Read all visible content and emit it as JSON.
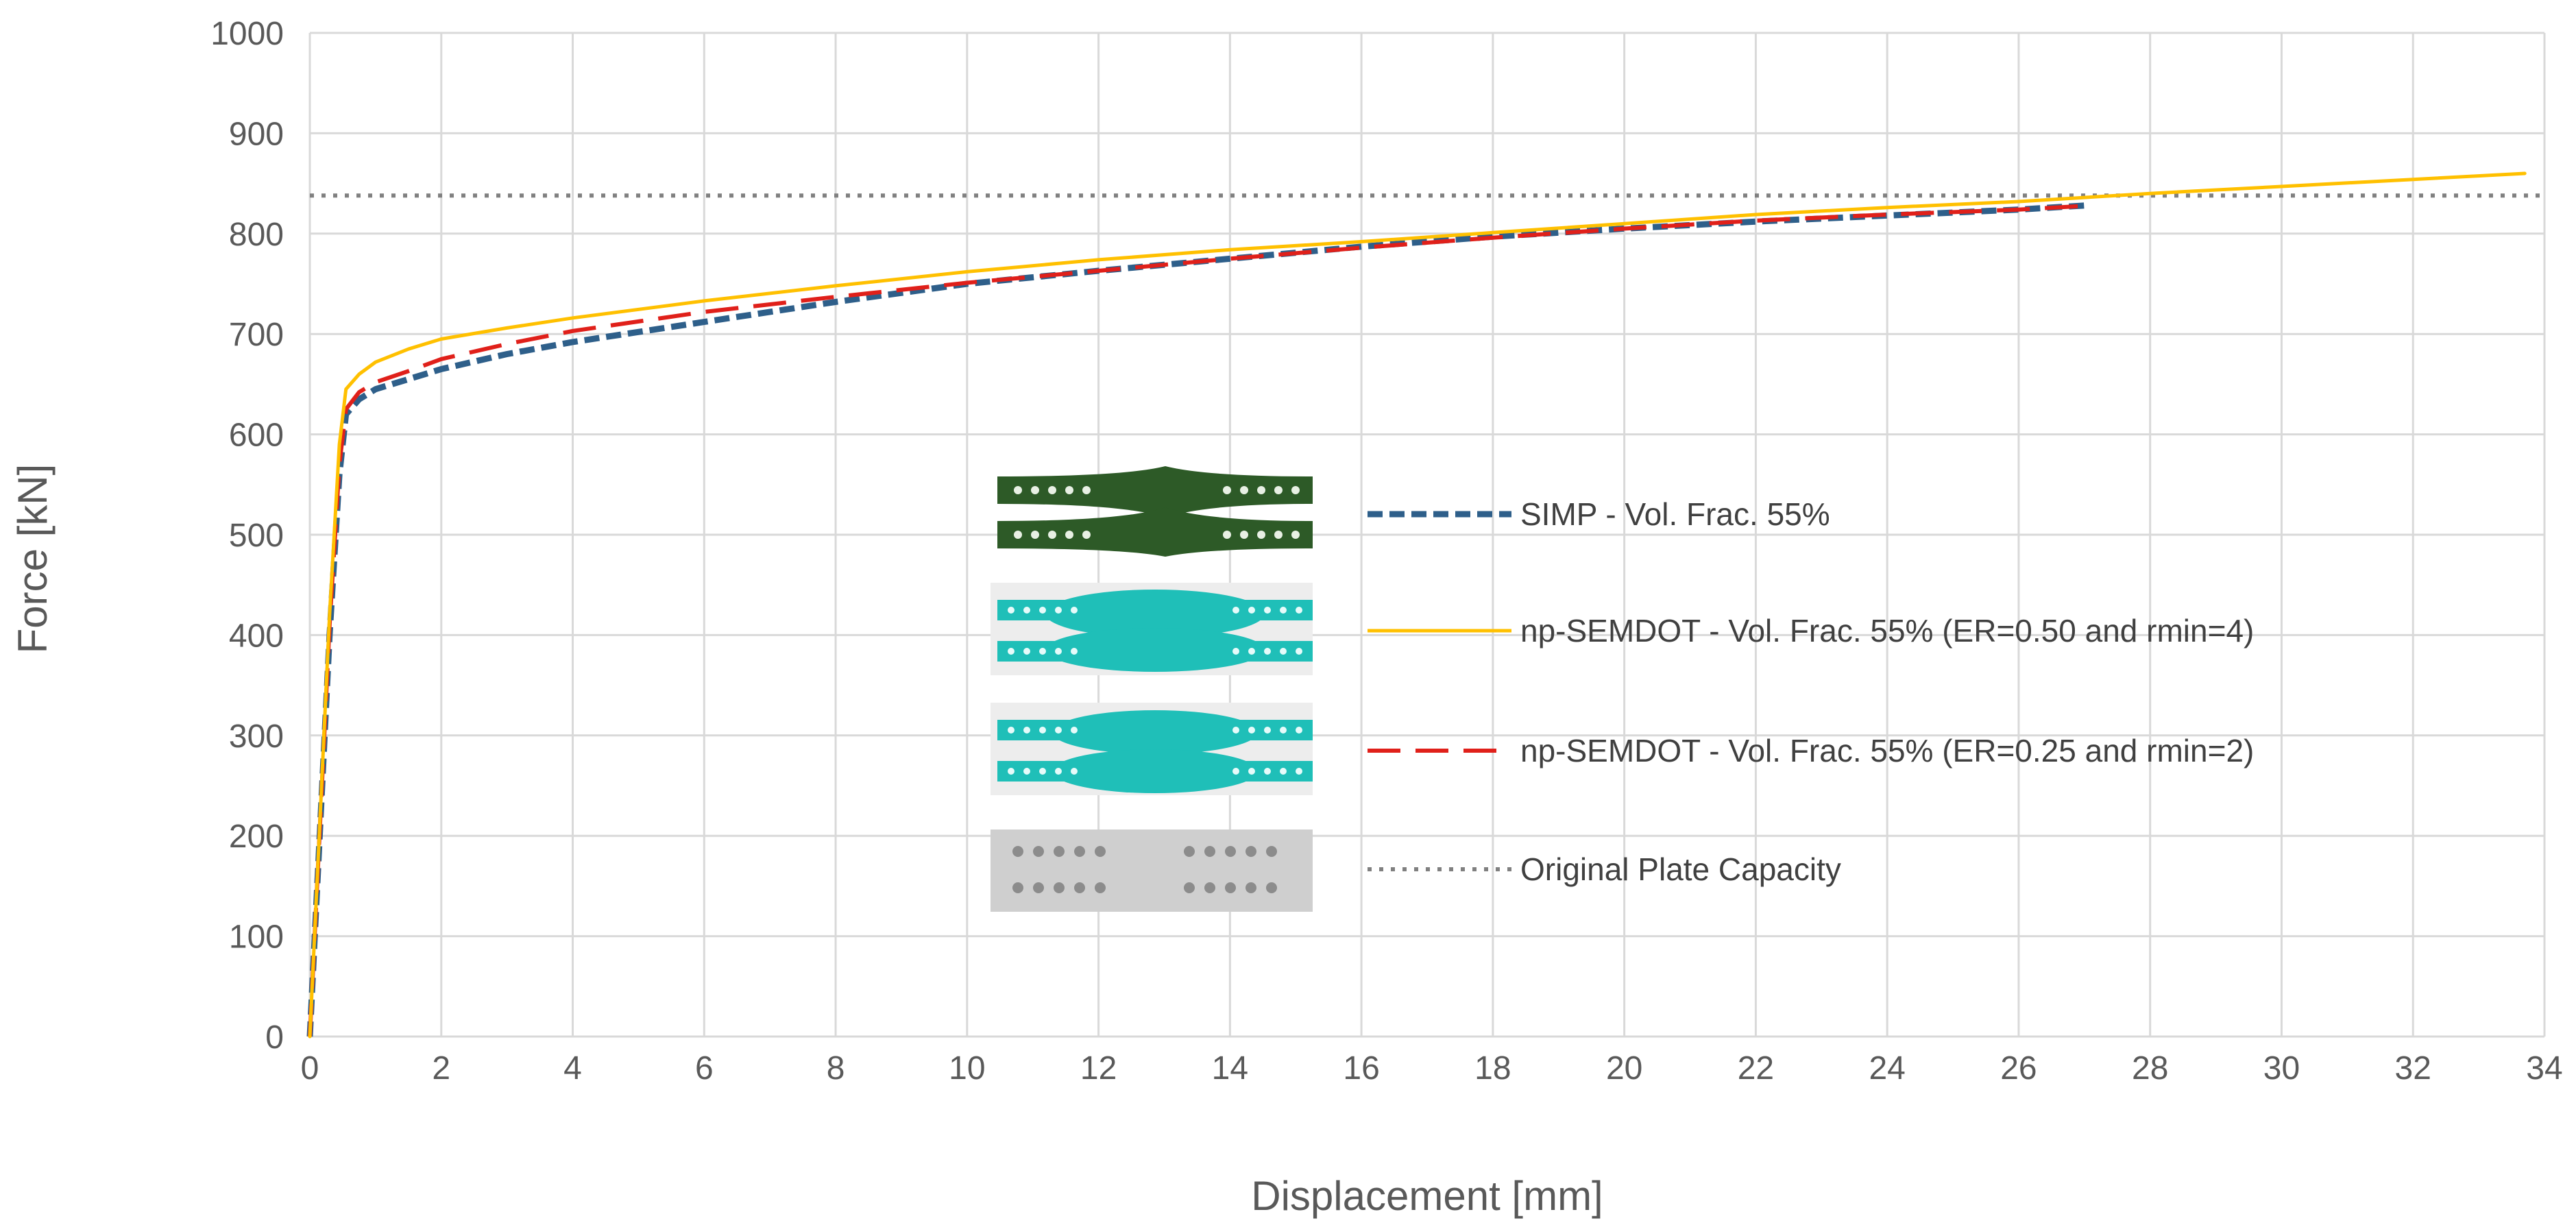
{
  "chart_data": {
    "type": "line",
    "title": "",
    "xlabel": "Displacement [mm]",
    "ylabel": "Force [kN]",
    "xlim": [
      0,
      34
    ],
    "ylim": [
      0,
      1000
    ],
    "xticks": [
      0,
      2,
      4,
      6,
      8,
      10,
      12,
      14,
      16,
      18,
      20,
      22,
      24,
      26,
      28,
      30,
      32,
      34
    ],
    "yticks": [
      0,
      100,
      200,
      300,
      400,
      500,
      600,
      700,
      800,
      900,
      1000
    ],
    "grid": true,
    "legend_position": "center",
    "series": [
      {
        "name": "SIMP - Vol. Frac. 55%",
        "color": "#2e5f8a",
        "style": "dashed",
        "x": [
          0,
          0.15,
          0.3,
          0.45,
          0.55,
          0.75,
          1,
          1.5,
          2,
          3,
          4,
          6,
          8,
          10,
          12,
          14,
          16,
          18,
          20,
          22,
          24,
          26,
          27
        ],
        "y": [
          0,
          200,
          400,
          560,
          620,
          635,
          645,
          655,
          665,
          680,
          692,
          712,
          732,
          750,
          763,
          775,
          787,
          797,
          805,
          812,
          818,
          824,
          828
        ]
      },
      {
        "name": "np-SEMDOT - Vol. Frac. 55% (ER=0.50 and rmin=4)",
        "color": "#ffc000",
        "style": "solid",
        "x": [
          0,
          0.15,
          0.3,
          0.45,
          0.55,
          0.75,
          1,
          1.5,
          2,
          3,
          4,
          6,
          8,
          10,
          12,
          14,
          16,
          18,
          20,
          22,
          24,
          26,
          28,
          30,
          32,
          33.7
        ],
        "y": [
          0,
          210,
          420,
          590,
          645,
          660,
          672,
          685,
          695,
          706,
          716,
          733,
          748,
          762,
          774,
          784,
          792,
          801,
          810,
          819,
          826,
          832,
          840,
          847,
          854,
          860
        ]
      },
      {
        "name": "np-SEMDOT - Vol. Frac. 55% (ER=0.25 and rmin=2)",
        "color": "#e0201a",
        "style": "longdash",
        "x": [
          0,
          0.15,
          0.3,
          0.45,
          0.55,
          0.75,
          1,
          1.5,
          2,
          3,
          4,
          6,
          8,
          10,
          12,
          14,
          16,
          18,
          20,
          22,
          24,
          26,
          27.1
        ],
        "y": [
          0,
          205,
          410,
          570,
          625,
          642,
          652,
          663,
          675,
          690,
          703,
          722,
          737,
          751,
          763,
          775,
          786,
          796,
          805,
          813,
          819,
          824,
          828
        ]
      },
      {
        "name": "Original Plate Capacity",
        "color": "#808080",
        "style": "dotted",
        "x": [
          0,
          34
        ],
        "y": [
          838,
          838
        ]
      }
    ]
  }
}
